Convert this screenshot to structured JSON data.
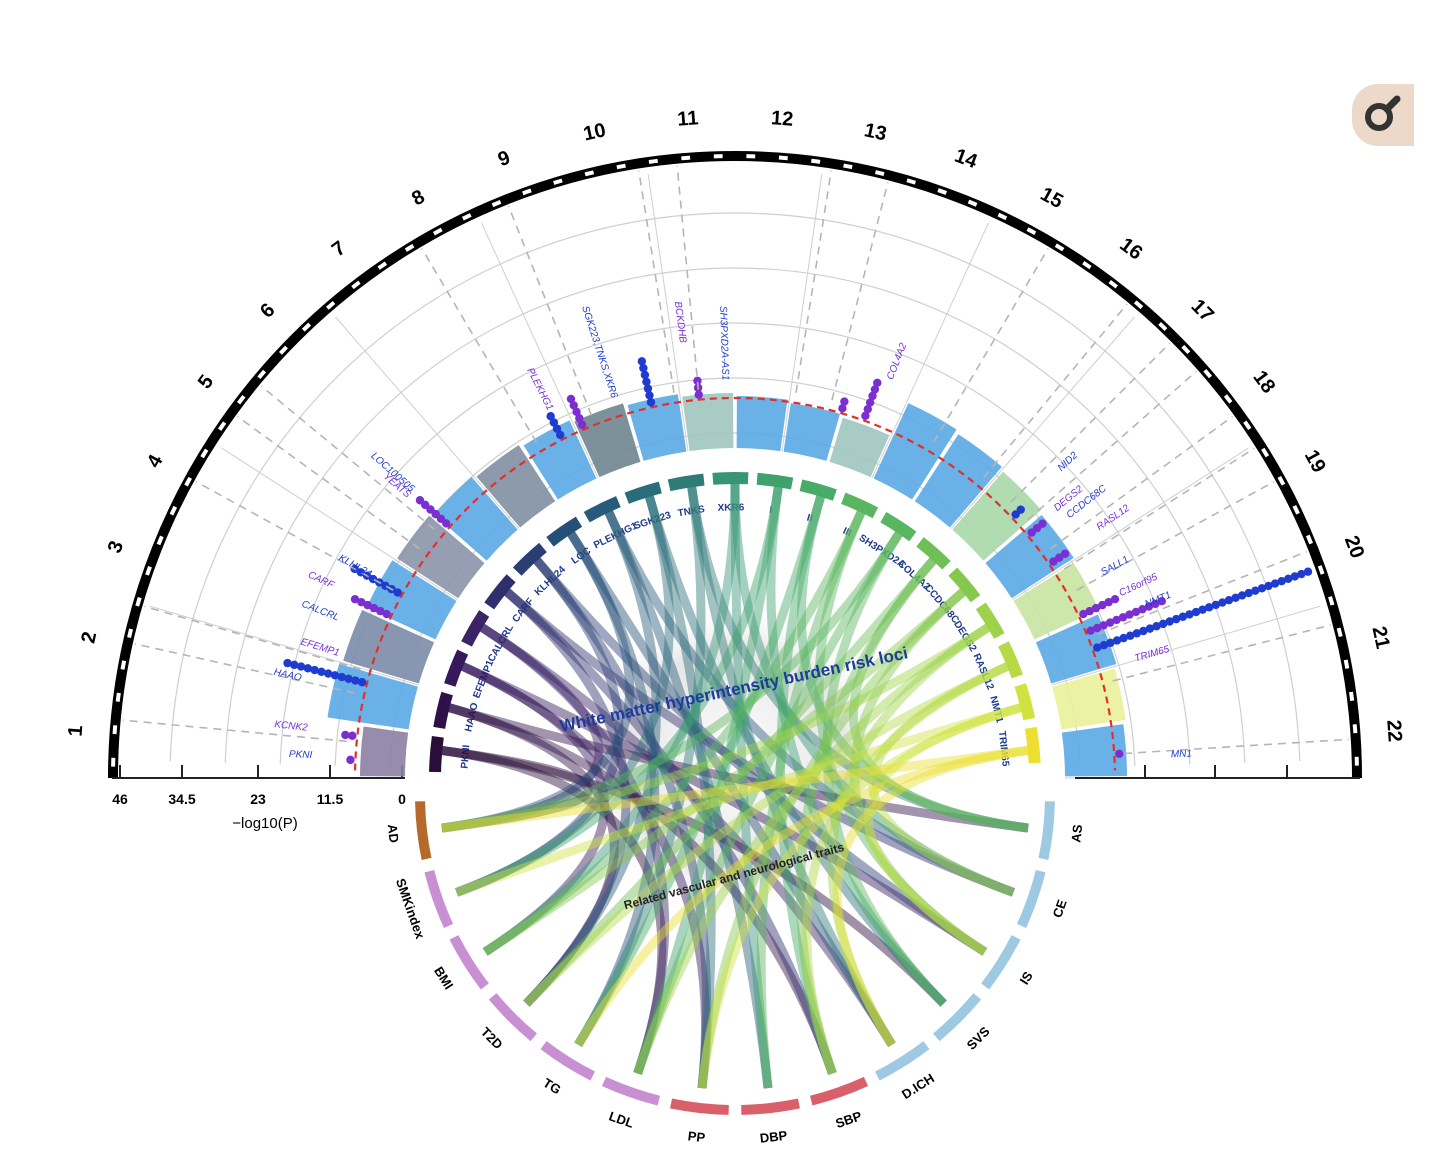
{
  "chart_data": {
    "type": "circos",
    "title": "White matter hyperintensity burden risk loci",
    "lower_title": "Related vascular and neurological traits",
    "axis_label": "−log10(P)",
    "axis_ticks": [
      "46",
      "34.5",
      "23",
      "11.5",
      "0"
    ],
    "chromosomes": [
      "1",
      "2",
      "3",
      "4",
      "5",
      "6",
      "7",
      "8",
      "9",
      "10",
      "11",
      "12",
      "13",
      "14",
      "15",
      "16",
      "17",
      "18",
      "19",
      "20",
      "21",
      "22"
    ],
    "loci": [
      {
        "label": "PKNI",
        "color": "#2a0e3a"
      },
      {
        "label": "HAAO",
        "color": "#2e1148"
      },
      {
        "label": "EFEMP1",
        "color": "#35195a"
      },
      {
        "label": "CALCRL",
        "color": "#3a2466"
      },
      {
        "label": "CARF",
        "color": "#2f2f6e"
      },
      {
        "label": "KLHL24",
        "color": "#2a3e74"
      },
      {
        "label": "LOC",
        "color": "#254f78"
      },
      {
        "label": "PLEKHG1",
        "color": "#275b7b"
      },
      {
        "label": "SGK223",
        "color": "#2a6d7a"
      },
      {
        "label": "TNKS",
        "color": "#2e7b78"
      },
      {
        "label": "XKR6",
        "color": "#379577"
      },
      {
        "label": "I",
        "color": "#3fa26c"
      },
      {
        "label": "II",
        "color": "#48ab68"
      },
      {
        "label": "III",
        "color": "#5ab560"
      },
      {
        "label": "SH3PXD2A",
        "color": "#5ab560"
      },
      {
        "label": "COL4A2",
        "color": "#6ebf56"
      },
      {
        "label": "CCDC68C",
        "color": "#86c84e"
      },
      {
        "label": "DEGS2",
        "color": "#9dd24a"
      },
      {
        "label": "RASL12",
        "color": "#b5da46"
      },
      {
        "label": "NMT1",
        "color": "#cfe23f"
      },
      {
        "label": "TRIM65",
        "color": "#ecdf30"
      }
    ],
    "traits": [
      {
        "label": "AD",
        "color": "#b56a2b"
      },
      {
        "label": "SMKindex",
        "color": "#c98fd3"
      },
      {
        "label": "BMI",
        "color": "#c98fd3"
      },
      {
        "label": "T2D",
        "color": "#c98fd3"
      },
      {
        "label": "TG",
        "color": "#c98fd3"
      },
      {
        "label": "LDL",
        "color": "#c98fd3"
      },
      {
        "label": "PP",
        "color": "#d9606a"
      },
      {
        "label": "DBP",
        "color": "#d9606a"
      },
      {
        "label": "SBP",
        "color": "#d9606a"
      },
      {
        "label": "D.ICH",
        "color": "#9ec9e2"
      },
      {
        "label": "SVS",
        "color": "#9ec9e2"
      },
      {
        "label": "IS",
        "color": "#9ec9e2"
      },
      {
        "label": "CE",
        "color": "#9ec9e2"
      },
      {
        "label": "AS",
        "color": "#9ec9e2"
      }
    ],
    "gene_labels": [
      "PKNI",
      "KCNK2",
      "HAAO",
      "EFEMP1",
      "CALCRL",
      "CARF",
      "KLHL24",
      "YEATS",
      "LOC100505",
      "PLEKHG1",
      "SGK223,TNKS,XKR6",
      "BCKDHB",
      "SH3PXD2A-AS1",
      "COL4A2",
      "NID2",
      "DEGS2",
      "CCDC68C",
      "RASL12",
      "SALL1",
      "C16orf95",
      "NMT1",
      "TRIM65",
      "MN1"
    ]
  },
  "colors": {
    "purple": "#7b2fd0",
    "blue": "#1e3ccf",
    "threshold_line": "#e0302a",
    "grid": "#cfcfcf",
    "ring": "#000000"
  },
  "zoom_icon": "magnifier-icon"
}
